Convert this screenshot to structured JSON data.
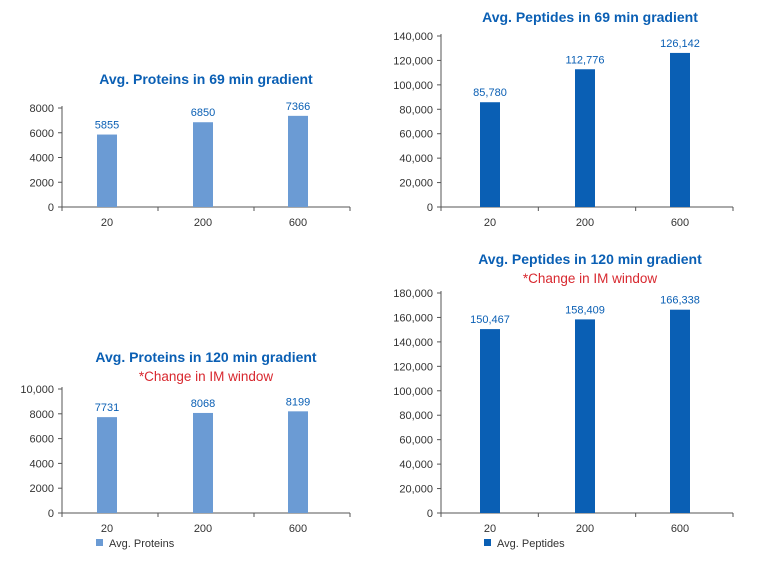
{
  "colors": {
    "proteins": "#6b9bd4",
    "peptides": "#0a5fb4",
    "title": "#0a5fb4",
    "subtitle": "#d8282f",
    "axis": "#555555"
  },
  "chart_data": [
    {
      "id": "proteins-69",
      "type": "bar",
      "title": "Avg. Proteins in 69 min gradient",
      "subtitle": "",
      "categories": [
        "20",
        "200",
        "600"
      ],
      "series": [
        {
          "name": "Avg. Proteins",
          "values": [
            5855,
            6850,
            7366
          ]
        }
      ],
      "value_labels": [
        "5855",
        "6850",
        "7366"
      ],
      "ylim": [
        0,
        8000
      ],
      "yticks": [
        0,
        2000,
        4000,
        6000,
        8000
      ],
      "ytick_labels": [
        "0",
        "2000",
        "4000",
        "6000",
        "8000"
      ],
      "grid": false,
      "legend": ""
    },
    {
      "id": "peptides-69",
      "type": "bar",
      "title": "Avg. Peptides in 69 min gradient",
      "subtitle": "",
      "categories": [
        "20",
        "200",
        "600"
      ],
      "series": [
        {
          "name": "Avg. Peptides",
          "values": [
            85780,
            112776,
            126142
          ]
        }
      ],
      "value_labels": [
        "85,780",
        "112,776",
        "126,142"
      ],
      "ylim": [
        0,
        140000
      ],
      "yticks": [
        0,
        20000,
        40000,
        60000,
        80000,
        100000,
        120000,
        140000
      ],
      "ytick_labels": [
        "0",
        "20,000",
        "40,000",
        "60,000",
        "80,000",
        "100,000",
        "120,000",
        "140,000"
      ],
      "grid": false,
      "legend": ""
    },
    {
      "id": "proteins-120",
      "type": "bar",
      "title": "Avg. Proteins in 120 min gradient",
      "subtitle": "*Change in IM window",
      "categories": [
        "20",
        "200",
        "600"
      ],
      "series": [
        {
          "name": "Avg. Proteins",
          "values": [
            7731,
            8068,
            8199
          ]
        }
      ],
      "value_labels": [
        "7731",
        "8068",
        "8199"
      ],
      "ylim": [
        0,
        10000
      ],
      "yticks": [
        0,
        2000,
        4000,
        6000,
        8000,
        10000
      ],
      "ytick_labels": [
        "0",
        "2000",
        "4000",
        "6000",
        "8000",
        "10,000"
      ],
      "grid": false,
      "legend": "bottom-left"
    },
    {
      "id": "peptides-120",
      "type": "bar",
      "title": "Avg. Peptides in 120 min gradient",
      "subtitle": "*Change in IM window",
      "categories": [
        "20",
        "200",
        "600"
      ],
      "series": [
        {
          "name": "Avg. Peptides",
          "values": [
            150467,
            158409,
            166338
          ]
        }
      ],
      "value_labels": [
        "150,467",
        "158,409",
        "166,338"
      ],
      "ylim": [
        0,
        180000
      ],
      "yticks": [
        0,
        20000,
        40000,
        60000,
        80000,
        100000,
        120000,
        140000,
        160000,
        180000
      ],
      "ytick_labels": [
        "0",
        "20,000",
        "40,000",
        "60,000",
        "80,000",
        "100,000",
        "120,000",
        "140,000",
        "160,000",
        "180,000"
      ],
      "grid": false,
      "legend": "bottom-left"
    }
  ]
}
